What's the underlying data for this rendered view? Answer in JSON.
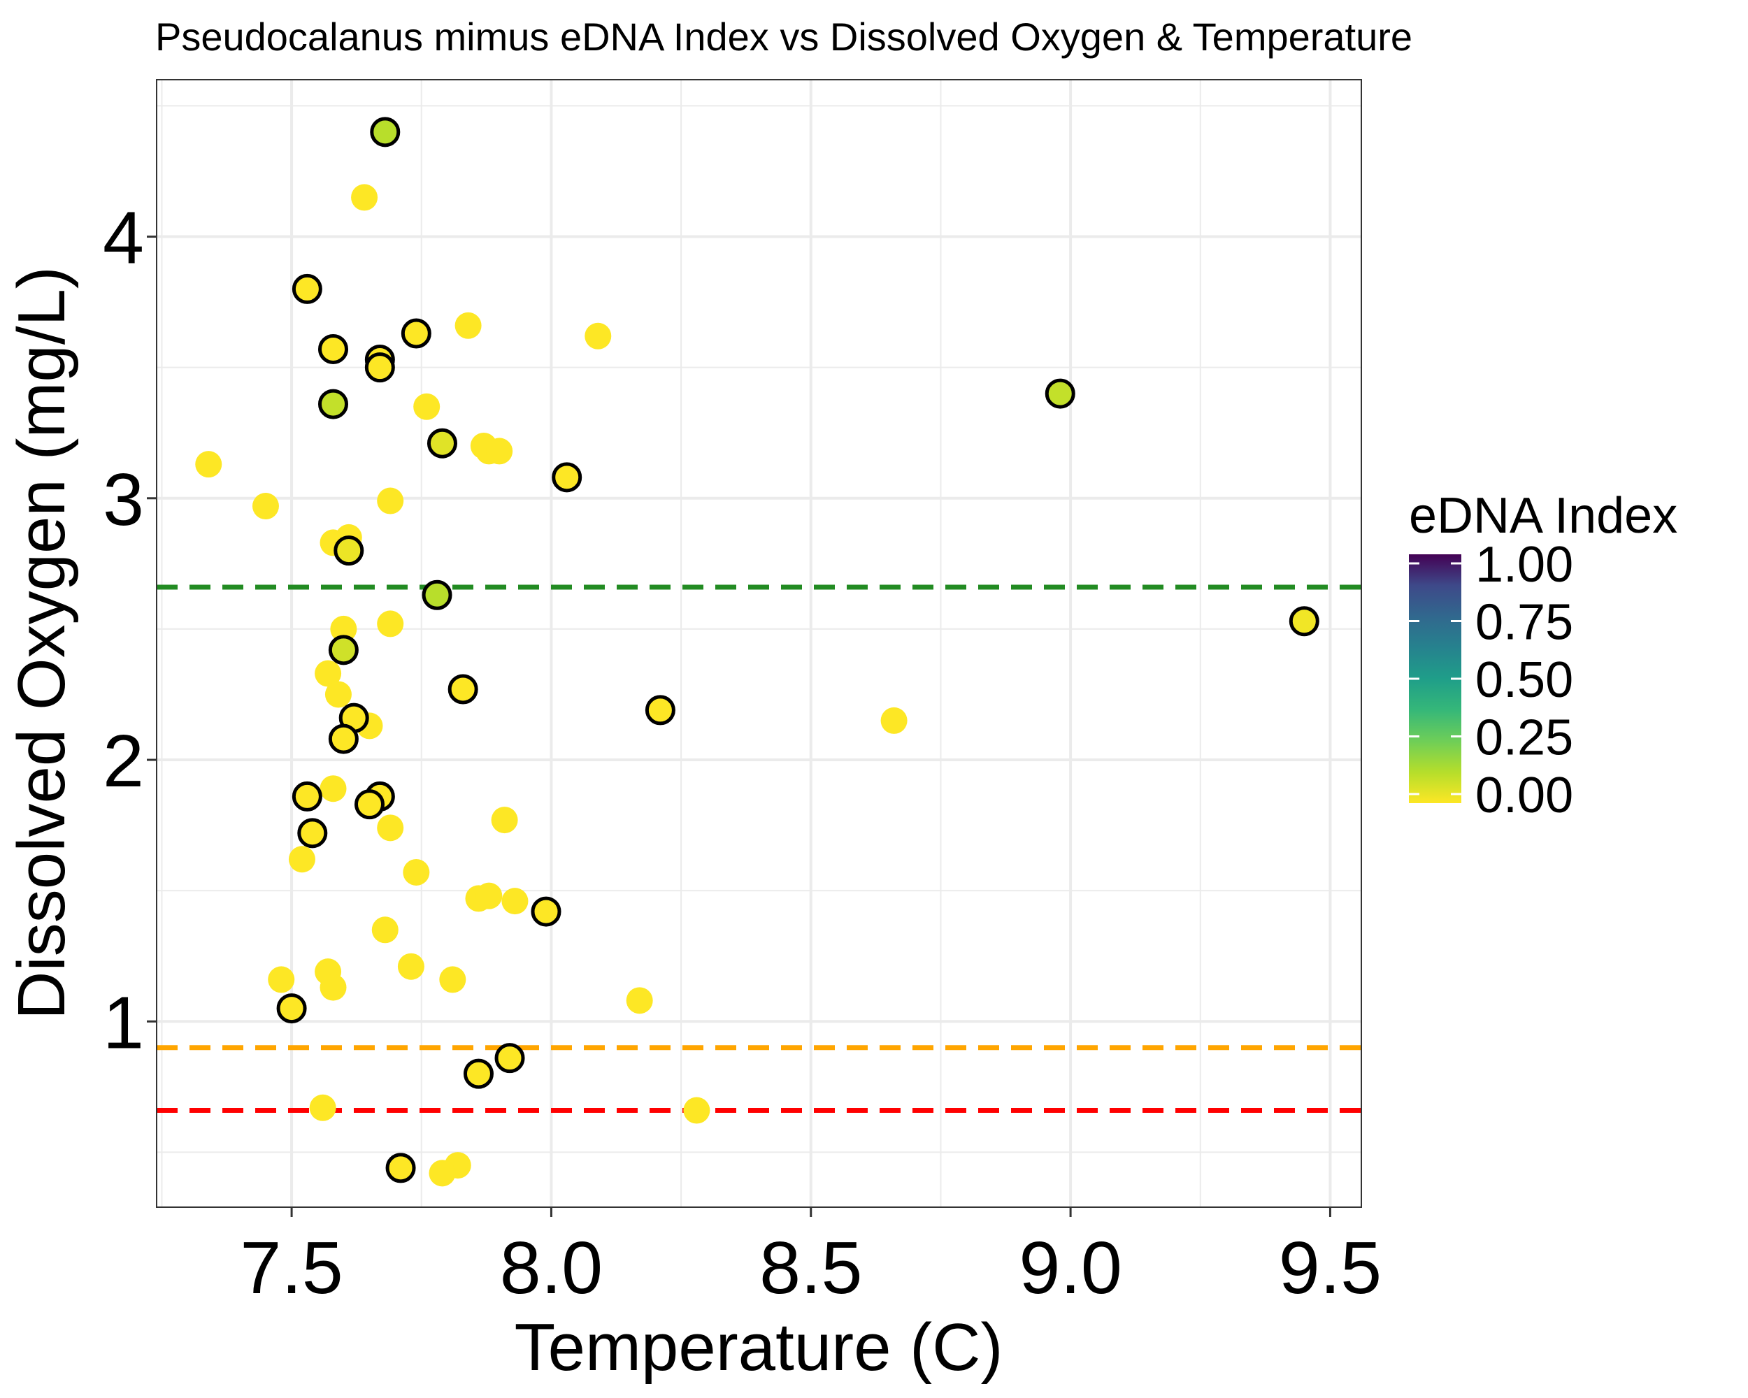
{
  "chart_data": {
    "type": "scatter",
    "title": "Pseudocalanus mimus eDNA Index vs Dissolved Oxygen & Temperature",
    "xlabel": "Temperature (C)",
    "ylabel": "Dissolved Oxygen (mg/L)",
    "xlim": [
      7.24,
      9.56
    ],
    "ylim": [
      0.29,
      4.6
    ],
    "xticks": [
      7.5,
      8.0,
      8.5,
      9.0,
      9.5
    ],
    "xtick_labels": [
      "7.5",
      "8.0",
      "8.5",
      "9.0",
      "9.5"
    ],
    "yticks": [
      1,
      2,
      3,
      4
    ],
    "ytick_labels": [
      "1",
      "2",
      "3",
      "4"
    ],
    "grid": true,
    "reference_lines": [
      {
        "y": 2.66,
        "color": "#228B22",
        "style": "dashed"
      },
      {
        "y": 0.9,
        "color": "#FFA500",
        "style": "dashed"
      },
      {
        "y": 0.66,
        "color": "#FF0000",
        "style": "dashed"
      }
    ],
    "legend": {
      "title": "eDNA Index",
      "position": "right",
      "colormap": "viridis",
      "ticks": [
        1.0,
        0.75,
        0.5,
        0.25,
        0.0
      ],
      "tick_labels": [
        "1.00",
        "0.75",
        "0.50",
        "0.25",
        "0.00"
      ]
    },
    "points_detected": [
      {
        "x": 7.68,
        "y": 4.4,
        "edna": 0.12
      },
      {
        "x": 7.53,
        "y": 3.8,
        "edna": 0.0
      },
      {
        "x": 7.58,
        "y": 3.57,
        "edna": 0.0
      },
      {
        "x": 7.74,
        "y": 3.63,
        "edna": 0.0
      },
      {
        "x": 7.67,
        "y": 3.53,
        "edna": 0.0
      },
      {
        "x": 7.67,
        "y": 3.5,
        "edna": 0.0
      },
      {
        "x": 7.58,
        "y": 3.36,
        "edna": 0.1
      },
      {
        "x": 7.79,
        "y": 3.21,
        "edna": 0.05
      },
      {
        "x": 8.03,
        "y": 3.08,
        "edna": 0.0
      },
      {
        "x": 7.61,
        "y": 2.8,
        "edna": 0.03
      },
      {
        "x": 7.78,
        "y": 2.63,
        "edna": 0.12
      },
      {
        "x": 7.6,
        "y": 2.42,
        "edna": 0.08
      },
      {
        "x": 7.83,
        "y": 2.27,
        "edna": 0.0
      },
      {
        "x": 7.62,
        "y": 2.16,
        "edna": 0.0
      },
      {
        "x": 7.6,
        "y": 2.08,
        "edna": 0.0
      },
      {
        "x": 7.53,
        "y": 1.86,
        "edna": 0.0
      },
      {
        "x": 7.67,
        "y": 1.86,
        "edna": 0.0
      },
      {
        "x": 7.65,
        "y": 1.83,
        "edna": 0.0
      },
      {
        "x": 7.54,
        "y": 1.72,
        "edna": 0.0
      },
      {
        "x": 7.99,
        "y": 1.42,
        "edna": 0.0
      },
      {
        "x": 7.5,
        "y": 1.05,
        "edna": 0.0
      },
      {
        "x": 7.92,
        "y": 0.86,
        "edna": 0.0
      },
      {
        "x": 7.86,
        "y": 0.8,
        "edna": 0.0
      },
      {
        "x": 7.71,
        "y": 0.44,
        "edna": 0.0
      },
      {
        "x": 8.21,
        "y": 2.19,
        "edna": 0.0
      },
      {
        "x": 8.98,
        "y": 3.4,
        "edna": 0.1
      },
      {
        "x": 9.45,
        "y": 2.53,
        "edna": 0.02
      }
    ],
    "points_not_detected": [
      {
        "x": 7.64,
        "y": 4.15
      },
      {
        "x": 7.84,
        "y": 3.66
      },
      {
        "x": 8.09,
        "y": 3.62
      },
      {
        "x": 7.76,
        "y": 3.35
      },
      {
        "x": 7.87,
        "y": 3.2
      },
      {
        "x": 7.88,
        "y": 3.18
      },
      {
        "x": 7.9,
        "y": 3.18
      },
      {
        "x": 7.34,
        "y": 3.13
      },
      {
        "x": 7.69,
        "y": 2.99
      },
      {
        "x": 7.45,
        "y": 2.97
      },
      {
        "x": 7.61,
        "y": 2.85
      },
      {
        "x": 7.58,
        "y": 2.83
      },
      {
        "x": 7.69,
        "y": 2.52
      },
      {
        "x": 7.6,
        "y": 2.5
      },
      {
        "x": 7.57,
        "y": 2.33
      },
      {
        "x": 7.59,
        "y": 2.25
      },
      {
        "x": 7.65,
        "y": 2.13
      },
      {
        "x": 8.66,
        "y": 2.15
      },
      {
        "x": 7.58,
        "y": 1.89
      },
      {
        "x": 7.91,
        "y": 1.77
      },
      {
        "x": 7.69,
        "y": 1.74
      },
      {
        "x": 7.52,
        "y": 1.62
      },
      {
        "x": 7.74,
        "y": 1.57
      },
      {
        "x": 7.86,
        "y": 1.47
      },
      {
        "x": 7.88,
        "y": 1.48
      },
      {
        "x": 7.93,
        "y": 1.46
      },
      {
        "x": 7.68,
        "y": 1.35
      },
      {
        "x": 7.73,
        "y": 1.21
      },
      {
        "x": 7.57,
        "y": 1.19
      },
      {
        "x": 7.48,
        "y": 1.16
      },
      {
        "x": 7.81,
        "y": 1.16
      },
      {
        "x": 7.58,
        "y": 1.13
      },
      {
        "x": 8.17,
        "y": 1.08
      },
      {
        "x": 7.56,
        "y": 0.67
      },
      {
        "x": 8.28,
        "y": 0.66
      },
      {
        "x": 7.82,
        "y": 0.45
      },
      {
        "x": 7.79,
        "y": 0.42
      }
    ]
  }
}
